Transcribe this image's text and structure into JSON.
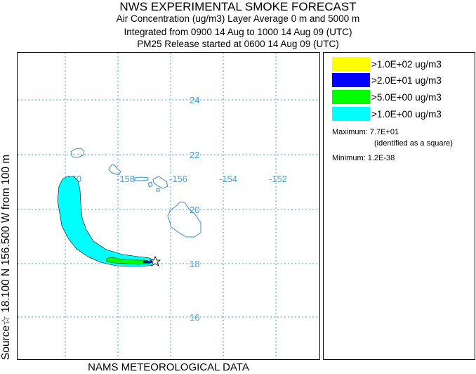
{
  "header": {
    "title": "NWS EXPERIMENTAL SMOKE FORECAST",
    "line1": "Air Concentration (ug/m3) Layer Average    0 m and  5000 m",
    "line2": "Integrated from 0900 14 Aug to 1000 14 Aug 09 (UTC)",
    "line3": "PM25 Release started at 0600 14 Aug 09 (UTC)"
  },
  "side_label": {
    "source_symbol": "☆",
    "text": "Source☆ 18.100  N 156.500  W     from   100 m"
  },
  "footer": "NAMS METEOROLOGICAL DATA",
  "map": {
    "lon_labels": [
      "-160",
      "-158",
      "-156",
      "-154",
      "-152"
    ],
    "lat_labels": [
      "24",
      "22",
      "20",
      "18",
      "16"
    ],
    "source": {
      "lat": 18.1,
      "lon": -156.5
    },
    "grid_color": "#4aa0d8",
    "coast_color": "#3b8fd0"
  },
  "legend": {
    "items": [
      {
        "label": ">1.0E+02 ug/m3",
        "color": "#ffff00"
      },
      {
        "label": ">2.0E+01 ug/m3",
        "color": "#0000ff"
      },
      {
        "label": ">5.0E+00 ug/m3",
        "color": "#00ff00"
      },
      {
        "label": ">1.0E+00 ug/m3",
        "color": "#00ffff"
      }
    ],
    "maximum": "Maximum: 7.7E+01",
    "maximum_note": "(identified as a square)",
    "minimum": "Minimum: 1.2E-38"
  }
}
